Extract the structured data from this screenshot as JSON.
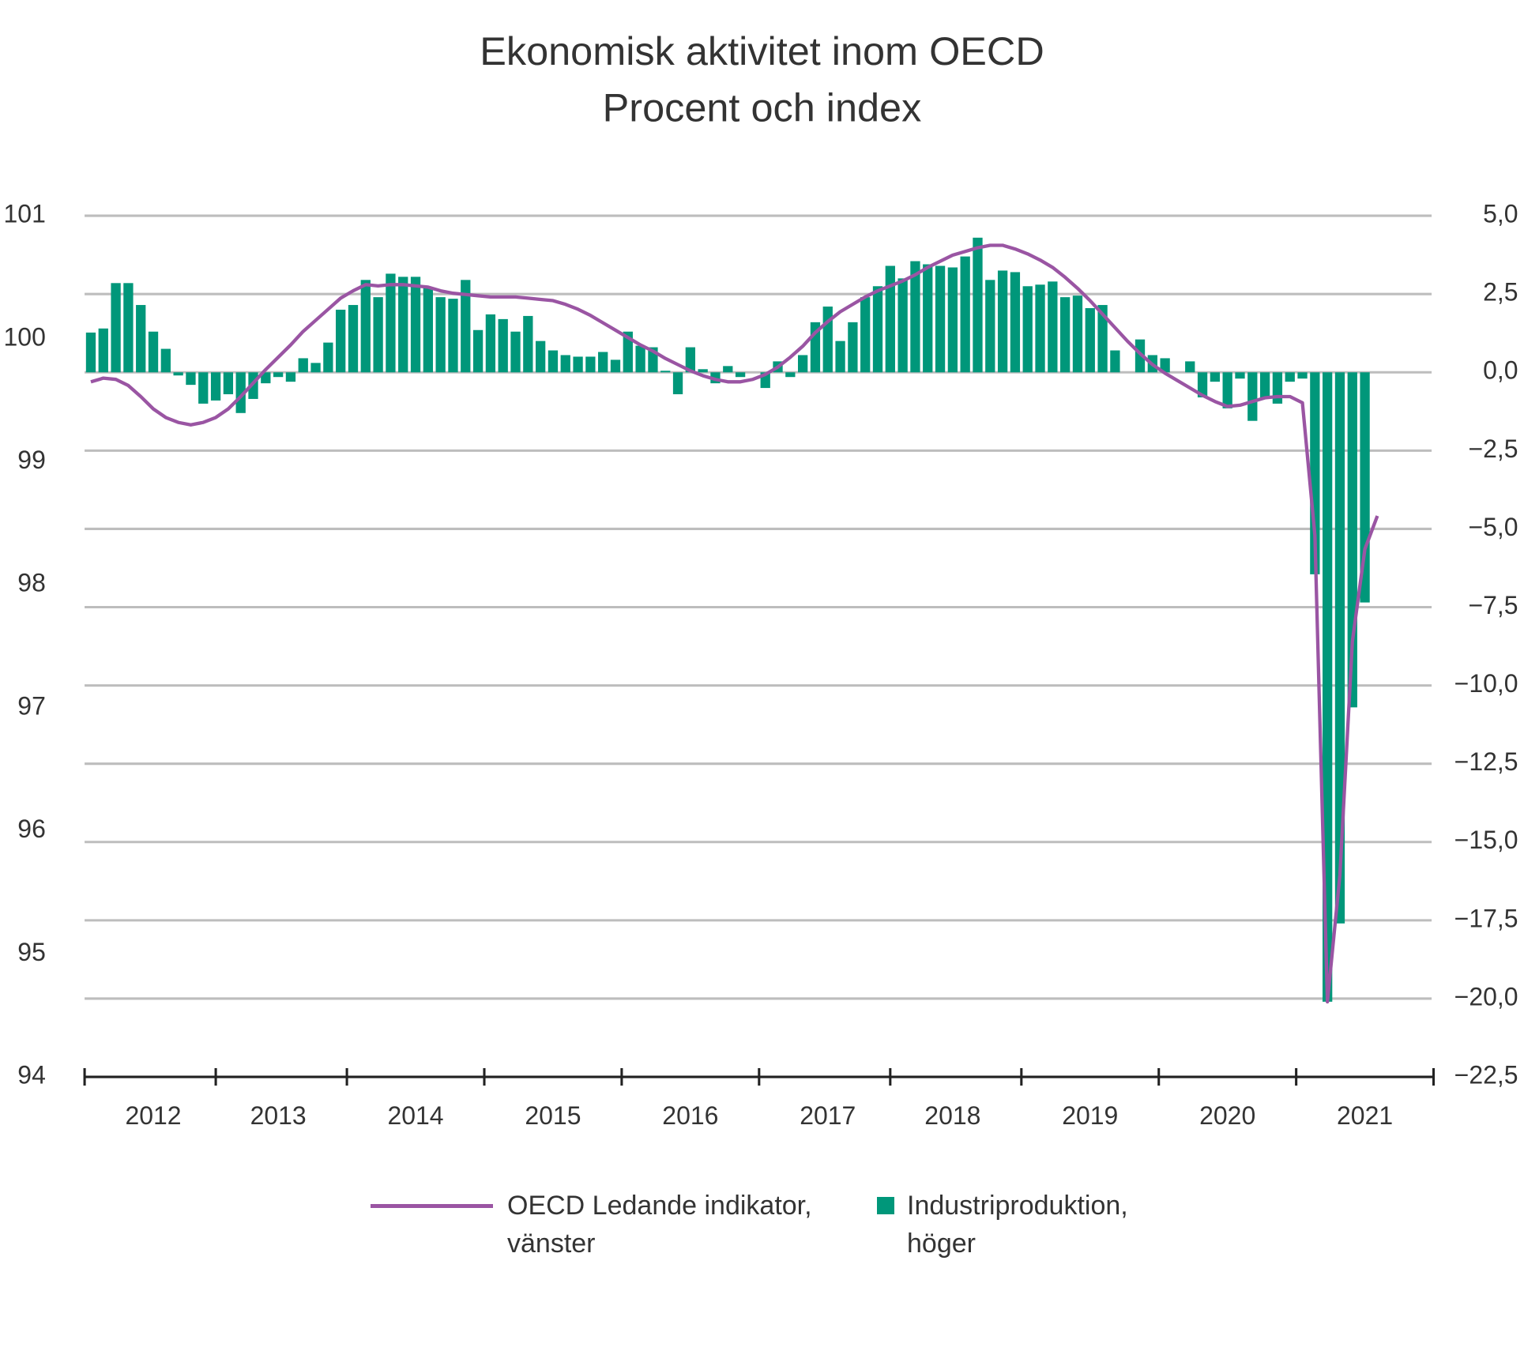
{
  "chart_data": {
    "type": "combo",
    "title": "Ekonomisk aktivitet inom OECD",
    "subtitle": "Procent och index",
    "categories": [
      null,
      null,
      null,
      null,
      null,
      "2012",
      null,
      null,
      null,
      null,
      null,
      null,
      null,
      null,
      null,
      "2013",
      null,
      null,
      null,
      null,
      null,
      null,
      null,
      null,
      null,
      null,
      "2014",
      null,
      null,
      null,
      null,
      null,
      null,
      null,
      null,
      null,
      null,
      "2015",
      null,
      null,
      null,
      null,
      null,
      null,
      null,
      null,
      null,
      null,
      "2016",
      null,
      null,
      null,
      null,
      null,
      null,
      null,
      null,
      null,
      null,
      "2017",
      null,
      null,
      null,
      null,
      null,
      null,
      null,
      null,
      null,
      "2018",
      null,
      null,
      null,
      null,
      null,
      null,
      null,
      null,
      null,
      null,
      "2019",
      null,
      null,
      null,
      null,
      null,
      null,
      null,
      null,
      null,
      null,
      "2020",
      null,
      null,
      null,
      null,
      null,
      null,
      null,
      null,
      null,
      null,
      "2021",
      null,
      null,
      null,
      null,
      null
    ],
    "ylim": [
      94,
      101
    ],
    "yticks": [
      94,
      95,
      96,
      97,
      98,
      99,
      100,
      101
    ],
    "y2lim": [
      -22.5,
      5
    ],
    "y2ticks": [
      {
        "value": -22.5,
        "label": "−22,5"
      },
      {
        "value": -20,
        "label": "−20,0"
      },
      {
        "value": -17.5,
        "label": "−17,5"
      },
      {
        "value": -15,
        "label": "−15,0"
      },
      {
        "value": -12.5,
        "label": "−12,5"
      },
      {
        "value": -10,
        "label": "−10,0"
      },
      {
        "value": -7.5,
        "label": "−7,5"
      },
      {
        "value": -5,
        "label": "−5,0"
      },
      {
        "value": -2.5,
        "label": "−2,5"
      },
      {
        "value": 0,
        "label": "0,0"
      },
      {
        "value": 2.5,
        "label": "2,5"
      },
      {
        "value": 5,
        "label": "5,0"
      }
    ],
    "grid": true,
    "series": [
      {
        "name": "OECD Ledande indikator, vänster",
        "type": "line",
        "color": "#9a55a3",
        "values": [
          99.65,
          99.68,
          99.67,
          99.62,
          99.53,
          99.43,
          99.36,
          99.32,
          99.3,
          99.32,
          99.36,
          99.43,
          99.53,
          99.64,
          99.75,
          99.85,
          99.95,
          100.06,
          100.15,
          100.24,
          100.33,
          100.39,
          100.44,
          100.43,
          100.44,
          100.44,
          100.43,
          100.42,
          100.39,
          100.37,
          100.36,
          100.35,
          100.34,
          100.34,
          100.34,
          100.33,
          100.32,
          100.31,
          100.28,
          100.24,
          100.19,
          100.13,
          100.07,
          100.01,
          99.95,
          99.9,
          99.84,
          99.79,
          99.74,
          99.7,
          99.67,
          99.65,
          99.65,
          99.67,
          99.71,
          99.77,
          99.85,
          99.94,
          100.05,
          100.14,
          100.22,
          100.28,
          100.34,
          100.39,
          100.43,
          100.47,
          100.52,
          100.58,
          100.63,
          100.68,
          100.71,
          100.74,
          100.76,
          100.76,
          100.73,
          100.69,
          100.64,
          100.58,
          100.5,
          100.41,
          100.31,
          100.2,
          100.09,
          99.98,
          99.88,
          99.79,
          99.72,
          99.66,
          99.6,
          99.54,
          99.49,
          99.45,
          99.46,
          99.49,
          99.52,
          99.53,
          99.53,
          99.48,
          98.4,
          94.61,
          95.64,
          97.54,
          98.29,
          98.56,
          null,
          null,
          null,
          null
        ]
      },
      {
        "name": "Industriproduktion, höger",
        "type": "bar",
        "axis": "y2",
        "color": "#00977a",
        "values": [
          1.27,
          1.4,
          2.85,
          2.85,
          2.15,
          1.3,
          0.75,
          -0.1,
          -0.4,
          -1.0,
          -0.9,
          -0.7,
          -1.3,
          -0.85,
          -0.35,
          -0.15,
          -0.3,
          0.45,
          0.3,
          0.95,
          2.0,
          2.15,
          2.95,
          2.4,
          3.15,
          3.05,
          3.05,
          2.7,
          2.4,
          2.35,
          2.95,
          1.35,
          1.85,
          1.7,
          1.3,
          1.8,
          1.0,
          0.7,
          0.55,
          0.5,
          0.5,
          0.65,
          0.4,
          1.3,
          0.85,
          0.8,
          0.05,
          -0.7,
          0.8,
          0.1,
          -0.35,
          0.2,
          -0.15,
          0,
          -0.5,
          0.35,
          -0.15,
          0.55,
          1.6,
          2.1,
          1.0,
          1.6,
          2.4,
          2.75,
          3.4,
          3.0,
          3.55,
          3.45,
          3.4,
          3.35,
          3.7,
          4.3,
          2.95,
          3.25,
          3.2,
          2.75,
          2.8,
          2.9,
          2.4,
          2.45,
          2.05,
          2.15,
          0.7,
          0,
          1.05,
          0.55,
          0.45,
          0,
          0.35,
          -0.8,
          -0.3,
          -1.15,
          -0.2,
          -1.55,
          -0.8,
          -1.0,
          -0.3,
          -0.2,
          -6.45,
          -20.1,
          -17.6,
          -10.7,
          -7.35,
          null,
          null,
          null,
          null,
          null
        ]
      }
    ]
  }
}
